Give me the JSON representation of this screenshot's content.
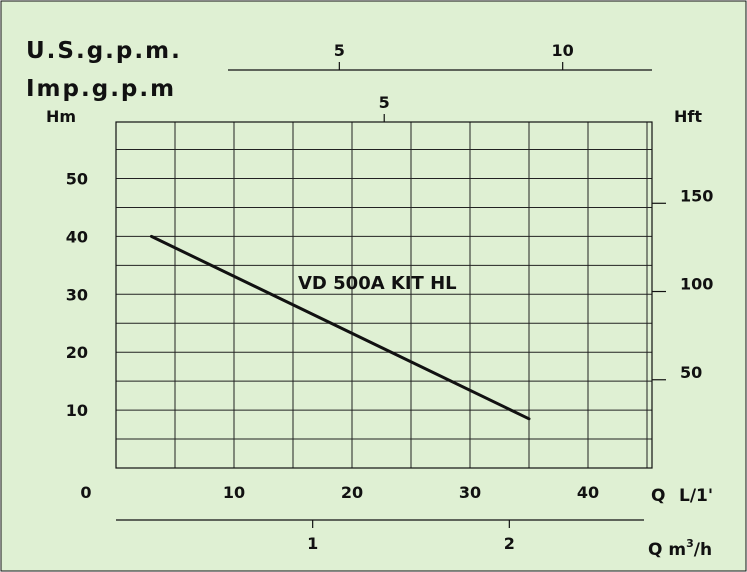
{
  "chart_data": {
    "type": "line",
    "title": "",
    "series": [
      {
        "name": "VD 500A KIT HL",
        "x": [
          3,
          35
        ],
        "y": [
          40,
          8.5
        ]
      }
    ],
    "x_axis": {
      "label": "Q",
      "unit": "L/1'",
      "range": [
        0,
        45
      ],
      "ticks": [
        0,
        10,
        20,
        30,
        40
      ]
    },
    "y_axis_left": {
      "label": "Hm",
      "range": [
        0,
        60
      ],
      "ticks": [
        10,
        20,
        30,
        40,
        50
      ]
    },
    "y_axis_right": {
      "label": "Hft",
      "ticks": [
        50,
        100,
        150
      ]
    },
    "x_axis_m3h": {
      "label": "Q m³/h",
      "text_main": "Q m",
      "text_sup": "3",
      "text_tail": "/h",
      "ticks": [
        1,
        2
      ]
    },
    "x_axis_usgpm": {
      "label": "U.S.g.p.m.",
      "ticks": [
        5,
        10
      ]
    },
    "x_axis_impgpm": {
      "label": "Imp.g.p.m",
      "ticks": [
        5
      ]
    },
    "grid": true,
    "background": "#dff0d3",
    "line_color": "#111111"
  }
}
